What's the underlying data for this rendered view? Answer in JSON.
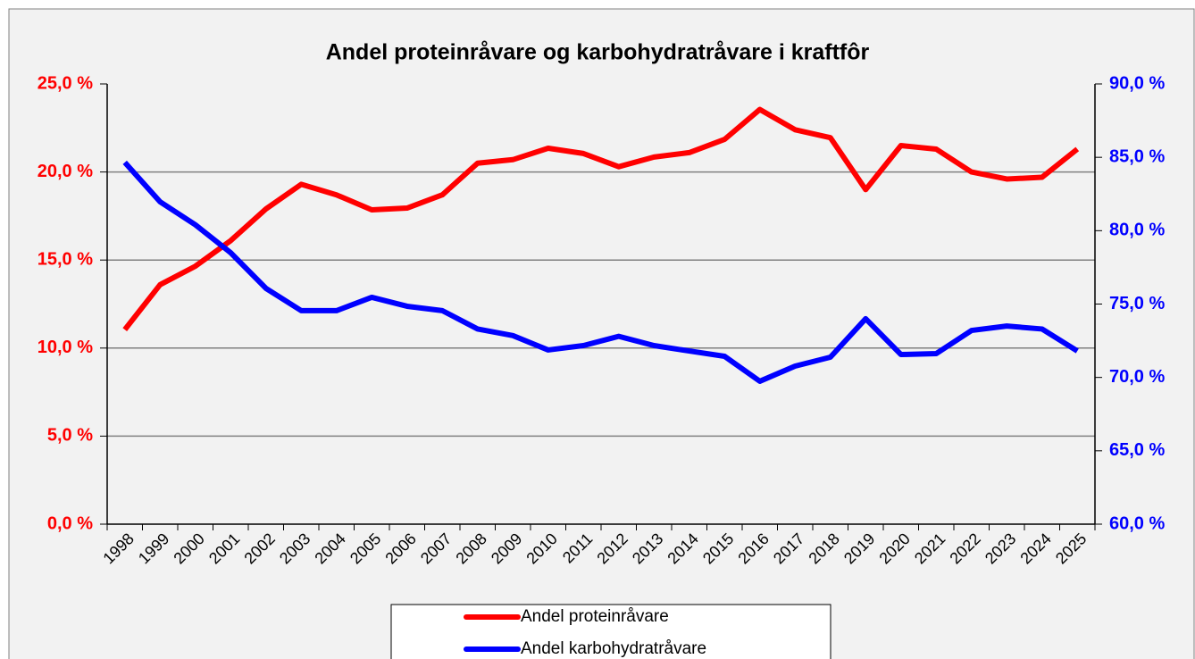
{
  "chart_data": {
    "type": "line",
    "title": "Andel proteinråvare og karbohydratråvare i kraftfôr",
    "categories": [
      "1998",
      "1999",
      "2000",
      "2001",
      "2002",
      "2003",
      "2004",
      "2005",
      "2006",
      "2007",
      "2008",
      "2009",
      "2010",
      "2011",
      "2012",
      "2013",
      "2014",
      "2015",
      "2016",
      "2017",
      "2018",
      "2019",
      "2020",
      "2021",
      "2022",
      "2023",
      "2024",
      "2025"
    ],
    "series": [
      {
        "name": "Andel proteinråvare",
        "color": "#ff0000",
        "axis": "y",
        "values": [
          11.05,
          13.6,
          14.65,
          16.1,
          17.9,
          19.3,
          18.7,
          17.85,
          17.95,
          18.7,
          20.5,
          20.7,
          21.35,
          21.05,
          20.3,
          20.85,
          21.1,
          21.85,
          23.55,
          22.4,
          21.95,
          19.0,
          21.5,
          21.3,
          20.0,
          19.6,
          19.7,
          21.3
        ]
      },
      {
        "name": "Andel karbohydratråvare",
        "color": "#0000ff",
        "axis": "y2",
        "values": [
          84.65,
          81.97,
          80.4,
          78.5,
          76.07,
          74.55,
          74.55,
          75.46,
          74.85,
          74.55,
          73.3,
          72.85,
          71.87,
          72.17,
          72.8,
          72.17,
          71.8,
          71.44,
          69.74,
          70.77,
          71.38,
          74.0,
          71.56,
          71.62,
          73.2,
          73.5,
          73.3,
          71.8
        ]
      }
    ],
    "ylim": [
      0,
      25
    ],
    "yticks": [
      {
        "value": 0,
        "label": "0,0 %"
      },
      {
        "value": 5,
        "label": "5,0 %"
      },
      {
        "value": 10,
        "label": "10,0 %"
      },
      {
        "value": 15,
        "label": "15,0 %"
      },
      {
        "value": 20,
        "label": "20,0 %"
      },
      {
        "value": 25,
        "label": "25,0 %"
      }
    ],
    "y2lim": [
      60,
      90
    ],
    "y2ticks": [
      {
        "value": 60,
        "label": "60,0 %"
      },
      {
        "value": 65,
        "label": "65,0 %"
      },
      {
        "value": 70,
        "label": "70,0 %"
      },
      {
        "value": 75,
        "label": "75,0 %"
      },
      {
        "value": 80,
        "label": "80,0 %"
      },
      {
        "value": 85,
        "label": "85,0 %"
      },
      {
        "value": 90,
        "label": "90,0 %"
      }
    ],
    "grid": true,
    "legend": "bottom"
  }
}
